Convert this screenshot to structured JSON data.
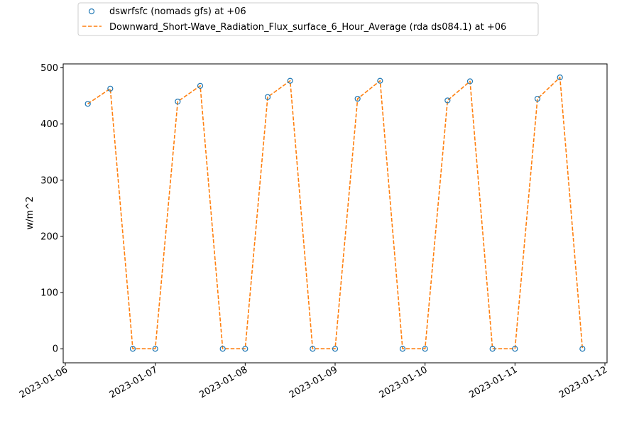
{
  "chart_data": {
    "type": "line",
    "ylabel": "w/m^2",
    "xlabel": "",
    "ylim": [
      -25,
      507
    ],
    "xlim": [
      "2023-01-06T00:00",
      "2023-01-12T00:00"
    ],
    "yticks": [
      0,
      100,
      200,
      300,
      400,
      500
    ],
    "xticks": [
      "2023-01-06",
      "2023-01-07",
      "2023-01-08",
      "2023-01-09",
      "2023-01-10",
      "2023-01-11",
      "2023-01-12"
    ],
    "legend": "top-left outside plot",
    "grid": false,
    "series": [
      {
        "name": "dswrfsfc (nomads gfs) at +06",
        "kind": "scatter",
        "marker": "hollow circle",
        "color": "#1f77b4",
        "x": [
          "2023-01-06T06:00",
          "2023-01-06T12:00",
          "2023-01-06T18:00",
          "2023-01-07T00:00",
          "2023-01-07T06:00",
          "2023-01-07T12:00",
          "2023-01-07T18:00",
          "2023-01-08T00:00",
          "2023-01-08T06:00",
          "2023-01-08T12:00",
          "2023-01-08T18:00",
          "2023-01-09T00:00",
          "2023-01-09T06:00",
          "2023-01-09T12:00",
          "2023-01-09T18:00",
          "2023-01-10T00:00",
          "2023-01-10T06:00",
          "2023-01-10T12:00",
          "2023-01-10T18:00",
          "2023-01-11T00:00",
          "2023-01-11T06:00",
          "2023-01-11T12:00",
          "2023-01-11T18:00"
        ],
        "y": [
          436,
          463,
          0,
          0,
          440,
          468,
          0,
          0,
          448,
          477,
          0,
          0,
          445,
          477,
          0,
          0,
          442,
          476,
          0,
          0,
          445,
          483,
          0
        ]
      },
      {
        "name": "Downward_Short-Wave_Radiation_Flux_surface_6_Hour_Average (rda ds084.1) at +06",
        "kind": "line",
        "style": "dashed",
        "color": "#ff7f0e",
        "x": [
          "2023-01-06T06:00",
          "2023-01-06T12:00",
          "2023-01-06T18:00",
          "2023-01-07T00:00",
          "2023-01-07T06:00",
          "2023-01-07T12:00",
          "2023-01-07T18:00",
          "2023-01-08T00:00",
          "2023-01-08T06:00",
          "2023-01-08T12:00",
          "2023-01-08T18:00",
          "2023-01-09T00:00",
          "2023-01-09T06:00",
          "2023-01-09T12:00",
          "2023-01-09T18:00",
          "2023-01-10T00:00",
          "2023-01-10T06:00",
          "2023-01-10T12:00",
          "2023-01-10T18:00",
          "2023-01-11T00:00",
          "2023-01-11T06:00",
          "2023-01-11T12:00",
          "2023-01-11T18:00"
        ],
        "y": [
          436,
          463,
          0,
          0,
          440,
          468,
          0,
          0,
          448,
          477,
          0,
          0,
          445,
          477,
          0,
          0,
          442,
          476,
          0,
          0,
          445,
          483,
          0
        ]
      }
    ]
  }
}
